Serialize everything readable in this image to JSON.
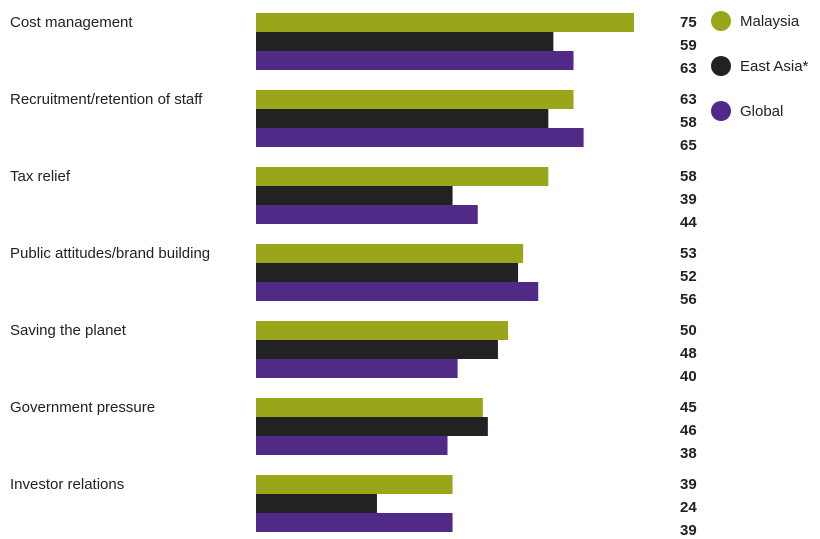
{
  "chart_data": {
    "type": "bar",
    "orientation": "horizontal",
    "categories": [
      "Cost management",
      "Recruitment/retention of staff",
      "Tax relief",
      "Public attitudes/brand building",
      "Saving the planet",
      "Government pressure",
      "Investor relations"
    ],
    "series": [
      {
        "name": "Malaysia",
        "color": "#9aa61a",
        "values": [
          75,
          63,
          58,
          53,
          50,
          45,
          39
        ]
      },
      {
        "name": "East Asia*",
        "color": "#222222",
        "values": [
          59,
          58,
          39,
          52,
          48,
          46,
          24
        ]
      },
      {
        "name": "Global",
        "color": "#512a87",
        "values": [
          63,
          65,
          44,
          56,
          40,
          38,
          39
        ]
      }
    ],
    "xlim": [
      0,
      75
    ],
    "grid": false,
    "legend_position": "top-right",
    "data_labels": true
  }
}
